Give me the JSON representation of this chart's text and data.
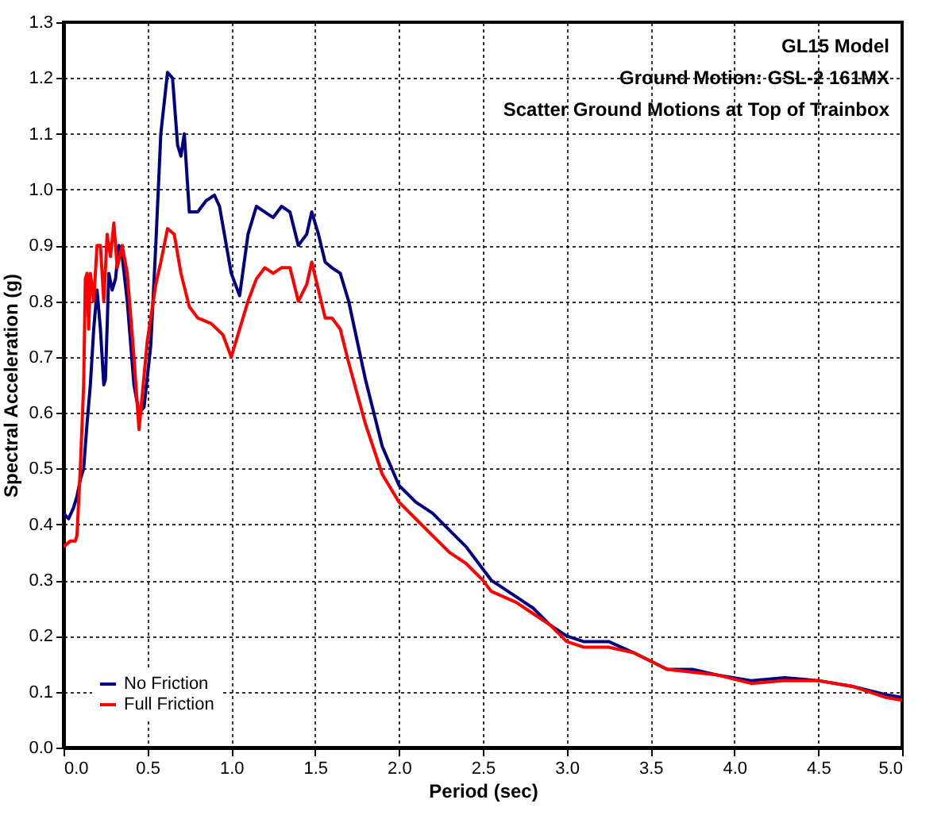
{
  "chart_data": {
    "type": "line",
    "title": "GL15 Model",
    "annotations": [
      "Ground Motion: GSL-2 161MX",
      "Scatter Ground Motions at Top of Trainbox"
    ],
    "xlabel": "Period (sec)",
    "ylabel": "Spectral Acceleration (g)",
    "xlim": [
      0,
      5
    ],
    "ylim": [
      0,
      1.3
    ],
    "xticks": [
      {
        "value": 0,
        "label": "0.0"
      },
      {
        "value": 0.5,
        "label": "0.5"
      },
      {
        "value": 1,
        "label": "1.0"
      },
      {
        "value": 1.5,
        "label": "1.5"
      },
      {
        "value": 2,
        "label": "2.0"
      },
      {
        "value": 2.5,
        "label": "2.5"
      },
      {
        "value": 3,
        "label": "3.0"
      },
      {
        "value": 3.5,
        "label": "3.5"
      },
      {
        "value": 4,
        "label": "4.0"
      },
      {
        "value": 4.5,
        "label": "4.5"
      },
      {
        "value": 5,
        "label": "5.0"
      }
    ],
    "yticks": [
      {
        "value": 0,
        "label": "0.0"
      },
      0.1,
      0.2,
      0.3,
      0.4,
      0.5,
      0.6,
      0.7,
      0.8,
      0.9,
      {
        "value": 1,
        "label": "1.0"
      },
      1.1,
      1.2,
      1.3
    ],
    "grid": true,
    "legend": "bottom left",
    "line_style": "solid",
    "marker": "none",
    "series": [
      {
        "name": "No Friction",
        "color": "#000080",
        "x": [
          0,
          0.03,
          0.06,
          0.08,
          0.1,
          0.12,
          0.14,
          0.16,
          0.18,
          0.2,
          0.22,
          0.24,
          0.25,
          0.27,
          0.29,
          0.31,
          0.33,
          0.35,
          0.38,
          0.42,
          0.45,
          0.48,
          0.52,
          0.55,
          0.58,
          0.62,
          0.65,
          0.68,
          0.7,
          0.72,
          0.75,
          0.8,
          0.85,
          0.9,
          0.93,
          1.0,
          1.05,
          1.1,
          1.15,
          1.2,
          1.25,
          1.3,
          1.35,
          1.4,
          1.45,
          1.48,
          1.52,
          1.56,
          1.6,
          1.65,
          1.7,
          1.8,
          1.9,
          2.0,
          2.1,
          2.2,
          2.3,
          2.4,
          2.5,
          2.55,
          2.7,
          2.8,
          2.9,
          3.0,
          3.1,
          3.25,
          3.4,
          3.6,
          3.75,
          3.9,
          4.1,
          4.3,
          4.5,
          4.7,
          4.9,
          5.0
        ],
        "values": [
          0.42,
          0.41,
          0.43,
          0.45,
          0.48,
          0.5,
          0.58,
          0.65,
          0.75,
          0.82,
          0.75,
          0.65,
          0.66,
          0.85,
          0.82,
          0.84,
          0.9,
          0.88,
          0.8,
          0.65,
          0.6,
          0.61,
          0.72,
          0.9,
          1.1,
          1.21,
          1.2,
          1.08,
          1.06,
          1.1,
          0.96,
          0.96,
          0.98,
          0.99,
          0.97,
          0.85,
          0.81,
          0.92,
          0.97,
          0.96,
          0.95,
          0.97,
          0.96,
          0.9,
          0.92,
          0.96,
          0.92,
          0.87,
          0.86,
          0.85,
          0.8,
          0.66,
          0.54,
          0.47,
          0.44,
          0.42,
          0.39,
          0.36,
          0.32,
          0.3,
          0.27,
          0.25,
          0.22,
          0.2,
          0.19,
          0.19,
          0.17,
          0.14,
          0.14,
          0.13,
          0.12,
          0.125,
          0.12,
          0.11,
          0.095,
          0.09
        ]
      },
      {
        "name": "Full Friction",
        "color": "#ff0000",
        "x": [
          0,
          0.04,
          0.07,
          0.08,
          0.1,
          0.12,
          0.13,
          0.14,
          0.15,
          0.16,
          0.18,
          0.2,
          0.22,
          0.24,
          0.26,
          0.28,
          0.3,
          0.32,
          0.35,
          0.38,
          0.42,
          0.45,
          0.5,
          0.55,
          0.58,
          0.62,
          0.66,
          0.7,
          0.75,
          0.8,
          0.88,
          0.95,
          1.0,
          1.05,
          1.1,
          1.15,
          1.2,
          1.25,
          1.3,
          1.35,
          1.4,
          1.45,
          1.48,
          1.52,
          1.56,
          1.6,
          1.65,
          1.7,
          1.8,
          1.9,
          2.0,
          2.1,
          2.2,
          2.3,
          2.4,
          2.5,
          2.55,
          2.7,
          2.8,
          2.9,
          3.0,
          3.1,
          3.25,
          3.4,
          3.6,
          3.75,
          3.9,
          4.1,
          4.3,
          4.5,
          4.7,
          4.9,
          5.0
        ],
        "values": [
          0.36,
          0.37,
          0.37,
          0.38,
          0.5,
          0.65,
          0.84,
          0.85,
          0.75,
          0.85,
          0.8,
          0.9,
          0.9,
          0.8,
          0.92,
          0.88,
          0.94,
          0.86,
          0.9,
          0.85,
          0.7,
          0.57,
          0.73,
          0.83,
          0.87,
          0.93,
          0.92,
          0.85,
          0.79,
          0.77,
          0.76,
          0.74,
          0.7,
          0.75,
          0.8,
          0.84,
          0.86,
          0.85,
          0.86,
          0.86,
          0.8,
          0.83,
          0.87,
          0.82,
          0.77,
          0.77,
          0.75,
          0.69,
          0.58,
          0.49,
          0.44,
          0.41,
          0.38,
          0.35,
          0.33,
          0.3,
          0.28,
          0.26,
          0.24,
          0.22,
          0.19,
          0.18,
          0.18,
          0.17,
          0.14,
          0.135,
          0.13,
          0.115,
          0.12,
          0.12,
          0.11,
          0.09,
          0.085
        ]
      }
    ]
  }
}
